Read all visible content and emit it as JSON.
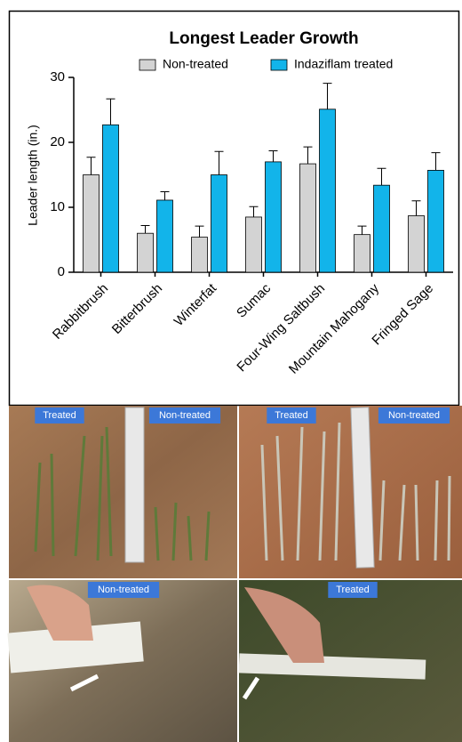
{
  "chart_data": {
    "type": "bar",
    "title": "Longest Leader Growth",
    "y_label": "Leader length (in.)",
    "categories": [
      "Rabbitbrush",
      "Bitterbrush",
      "Winterfat",
      "Sumac",
      "Four-Wing Saltbush",
      "Mountain Mahogany",
      "Fringed Sage"
    ],
    "series": [
      {
        "name": "Non-treated",
        "color": "#d3d3d3",
        "values": [
          15,
          6,
          5.4,
          8.5,
          16.7,
          5.8,
          8.7
        ],
        "errors": [
          2.7,
          1.2,
          1.7,
          1.6,
          2.6,
          1.3,
          2.3
        ]
      },
      {
        "name": "Indaziflam treated",
        "color": "#12b4ea",
        "values": [
          22.7,
          11.1,
          15,
          17,
          25.1,
          13.4,
          15.7
        ],
        "errors": [
          4,
          1.3,
          3.6,
          1.7,
          4,
          2.6,
          2.7
        ]
      }
    ],
    "ylim": [
      0,
      30
    ],
    "yticks": [
      0,
      10,
      20,
      30
    ],
    "grid": false
  },
  "photos": [
    {
      "labels": [
        "Treated",
        "Non-treated"
      ]
    },
    {
      "labels": [
        "Treated",
        "Non-treated"
      ]
    },
    {
      "labels": [
        "Non-treated"
      ]
    },
    {
      "labels": [
        "Treated"
      ]
    }
  ]
}
